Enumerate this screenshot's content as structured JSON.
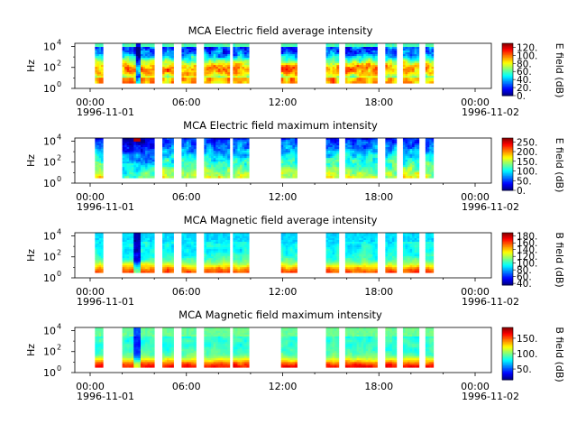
{
  "chart_data": [
    {
      "type": "heatmap",
      "title": "MCA  Electric field average intensity",
      "ylabel": "Hz",
      "colorbar_label": "E field (dB)",
      "colorbar_ticks": [
        "120.",
        "100.",
        "80.",
        "60.",
        "40.",
        "20.",
        "0."
      ],
      "colorbar_range": [
        0,
        130
      ],
      "yticks": [
        "10",
        "10",
        "10"
      ],
      "yticks_exp": [
        "4",
        "2",
        "0"
      ],
      "xticks": [
        "00:00",
        "06:00",
        "12:00",
        "18:00",
        "00:00"
      ],
      "x_dates": [
        "1996-11-01",
        "1996-11-02"
      ],
      "character": "avg-e"
    },
    {
      "type": "heatmap",
      "title": "MCA  Electric field maximum intensity",
      "ylabel": "Hz",
      "colorbar_label": "E field (dB)",
      "colorbar_ticks": [
        "250.",
        "200.",
        "150.",
        "100.",
        "50.",
        "0."
      ],
      "colorbar_range": [
        0,
        270
      ],
      "yticks": [
        "10",
        "10",
        "10"
      ],
      "yticks_exp": [
        "4",
        "2",
        "0"
      ],
      "xticks": [
        "00:00",
        "06:00",
        "12:00",
        "18:00",
        "00:00"
      ],
      "x_dates": [
        "1996-11-01",
        "1996-11-02"
      ],
      "character": "max-e"
    },
    {
      "type": "heatmap",
      "title": "MCA  Magnetic field average intensity",
      "ylabel": "Hz",
      "colorbar_label": "B field (dB)",
      "colorbar_ticks": [
        "180.",
        "160.",
        "140.",
        "120.",
        "100.",
        "80.",
        "60.",
        "40."
      ],
      "colorbar_range": [
        35,
        190
      ],
      "yticks": [
        "10",
        "10",
        "10"
      ],
      "yticks_exp": [
        "4",
        "2",
        "0"
      ],
      "xticks": [
        "00:00",
        "06:00",
        "12:00",
        "18:00",
        "00:00"
      ],
      "x_dates": [
        "1996-11-01",
        "1996-11-02"
      ],
      "character": "avg-b"
    },
    {
      "type": "heatmap",
      "title": "MCA  Magnetic field maximum intensity",
      "ylabel": "Hz",
      "colorbar_label": "B field (dB)",
      "colorbar_ticks": [
        "150.",
        "100.",
        "50."
      ],
      "colorbar_range": [
        15,
        185
      ],
      "yticks": [
        "10",
        "10",
        "10"
      ],
      "yticks_exp": [
        "4",
        "2",
        "0"
      ],
      "xticks": [
        "00:00",
        "06:00",
        "12:00",
        "18:00",
        "00:00"
      ],
      "x_dates": [
        "1996-11-01",
        "1996-11-02"
      ],
      "character": "max-b"
    }
  ],
  "data_segments_hours": [
    [
      0.3,
      0.8
    ],
    [
      2.0,
      4.0
    ],
    [
      4.5,
      5.2
    ],
    [
      5.7,
      6.6
    ],
    [
      7.1,
      8.7
    ],
    [
      8.9,
      9.9
    ],
    [
      11.9,
      12.9
    ],
    [
      14.7,
      15.5
    ],
    [
      15.9,
      17.9
    ],
    [
      18.4,
      19.1
    ],
    [
      19.5,
      20.5
    ],
    [
      20.9,
      21.4
    ]
  ],
  "frequency_range_exp": [
    0.5,
    4.3
  ]
}
